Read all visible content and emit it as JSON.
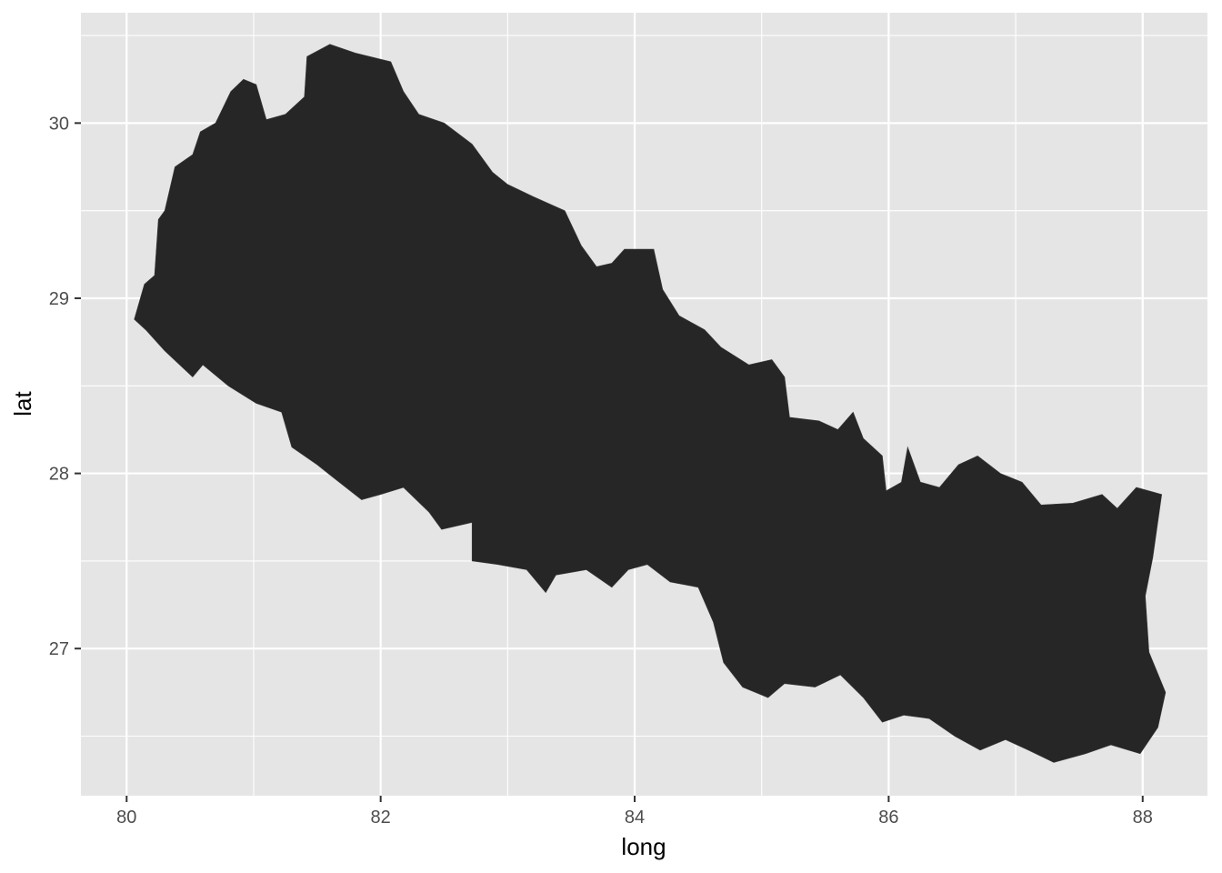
{
  "chart_data": {
    "type": "map",
    "region": "Nepal",
    "fill_color": "#262626",
    "panel_background": "#e5e5e5",
    "grid": true,
    "xlabel": "long",
    "ylabel": "lat",
    "xlim": [
      79.64,
      88.51
    ],
    "ylim": [
      26.16,
      30.63
    ],
    "x_ticks": [
      {
        "value": 80,
        "label": "80"
      },
      {
        "value": 82,
        "label": "82"
      },
      {
        "value": 84,
        "label": "84"
      },
      {
        "value": 86,
        "label": "86"
      },
      {
        "value": 88,
        "label": "88"
      }
    ],
    "y_ticks": [
      {
        "value": 27,
        "label": "27"
      },
      {
        "value": 28,
        "label": "28"
      },
      {
        "value": 29,
        "label": "29"
      },
      {
        "value": 30,
        "label": "30"
      }
    ],
    "outline": [
      [
        80.06,
        28.88
      ],
      [
        80.14,
        29.08
      ],
      [
        80.22,
        29.13
      ],
      [
        80.25,
        29.45
      ],
      [
        80.3,
        29.5
      ],
      [
        80.38,
        29.75
      ],
      [
        80.52,
        29.82
      ],
      [
        80.58,
        29.95
      ],
      [
        80.7,
        30.0
      ],
      [
        80.82,
        30.18
      ],
      [
        80.92,
        30.25
      ],
      [
        81.02,
        30.22
      ],
      [
        81.1,
        30.02
      ],
      [
        81.25,
        30.05
      ],
      [
        81.4,
        30.15
      ],
      [
        81.42,
        30.38
      ],
      [
        81.6,
        30.45
      ],
      [
        81.8,
        30.4
      ],
      [
        82.08,
        30.35
      ],
      [
        82.18,
        30.18
      ],
      [
        82.3,
        30.05
      ],
      [
        82.5,
        30.0
      ],
      [
        82.72,
        29.88
      ],
      [
        82.88,
        29.72
      ],
      [
        83.0,
        29.65
      ],
      [
        83.2,
        29.58
      ],
      [
        83.45,
        29.5
      ],
      [
        83.58,
        29.3
      ],
      [
        83.7,
        29.18
      ],
      [
        83.82,
        29.2
      ],
      [
        83.92,
        29.28
      ],
      [
        84.15,
        29.28
      ],
      [
        84.22,
        29.05
      ],
      [
        84.35,
        28.9
      ],
      [
        84.55,
        28.82
      ],
      [
        84.68,
        28.72
      ],
      [
        84.9,
        28.62
      ],
      [
        85.08,
        28.65
      ],
      [
        85.18,
        28.55
      ],
      [
        85.22,
        28.32
      ],
      [
        85.45,
        28.3
      ],
      [
        85.6,
        28.25
      ],
      [
        85.72,
        28.35
      ],
      [
        85.8,
        28.2
      ],
      [
        85.95,
        28.1
      ],
      [
        85.98,
        27.9
      ],
      [
        86.1,
        27.95
      ],
      [
        86.15,
        28.15
      ],
      [
        86.25,
        27.95
      ],
      [
        86.4,
        27.92
      ],
      [
        86.55,
        28.05
      ],
      [
        86.7,
        28.1
      ],
      [
        86.88,
        28.0
      ],
      [
        87.05,
        27.95
      ],
      [
        87.2,
        27.82
      ],
      [
        87.45,
        27.83
      ],
      [
        87.68,
        27.88
      ],
      [
        87.8,
        27.8
      ],
      [
        87.95,
        27.92
      ],
      [
        88.15,
        27.88
      ],
      [
        88.08,
        27.52
      ],
      [
        88.02,
        27.3
      ],
      [
        88.05,
        26.98
      ],
      [
        88.18,
        26.75
      ],
      [
        88.12,
        26.55
      ],
      [
        87.98,
        26.4
      ],
      [
        87.75,
        26.45
      ],
      [
        87.55,
        26.4
      ],
      [
        87.3,
        26.35
      ],
      [
        87.1,
        26.42
      ],
      [
        86.92,
        26.48
      ],
      [
        86.72,
        26.42
      ],
      [
        86.52,
        26.5
      ],
      [
        86.32,
        26.6
      ],
      [
        86.12,
        26.62
      ],
      [
        85.95,
        26.58
      ],
      [
        85.8,
        26.72
      ],
      [
        85.62,
        26.85
      ],
      [
        85.42,
        26.78
      ],
      [
        85.18,
        26.8
      ],
      [
        85.05,
        26.72
      ],
      [
        84.85,
        26.78
      ],
      [
        84.7,
        26.92
      ],
      [
        84.62,
        27.15
      ],
      [
        84.5,
        27.35
      ],
      [
        84.28,
        27.38
      ],
      [
        84.1,
        27.48
      ],
      [
        83.95,
        27.45
      ],
      [
        83.82,
        27.35
      ],
      [
        83.62,
        27.45
      ],
      [
        83.38,
        27.42
      ],
      [
        83.3,
        27.32
      ],
      [
        83.15,
        27.45
      ],
      [
        82.92,
        27.48
      ],
      [
        82.72,
        27.5
      ],
      [
        82.72,
        27.72
      ],
      [
        82.48,
        27.68
      ],
      [
        82.38,
        27.78
      ],
      [
        82.18,
        27.92
      ],
      [
        82.0,
        27.88
      ],
      [
        81.85,
        27.85
      ],
      [
        81.62,
        27.98
      ],
      [
        81.5,
        28.05
      ],
      [
        81.3,
        28.15
      ],
      [
        81.22,
        28.35
      ],
      [
        81.02,
        28.4
      ],
      [
        80.8,
        28.5
      ],
      [
        80.6,
        28.62
      ],
      [
        80.52,
        28.55
      ],
      [
        80.3,
        28.7
      ],
      [
        80.15,
        28.82
      ],
      [
        80.06,
        28.88
      ]
    ]
  }
}
